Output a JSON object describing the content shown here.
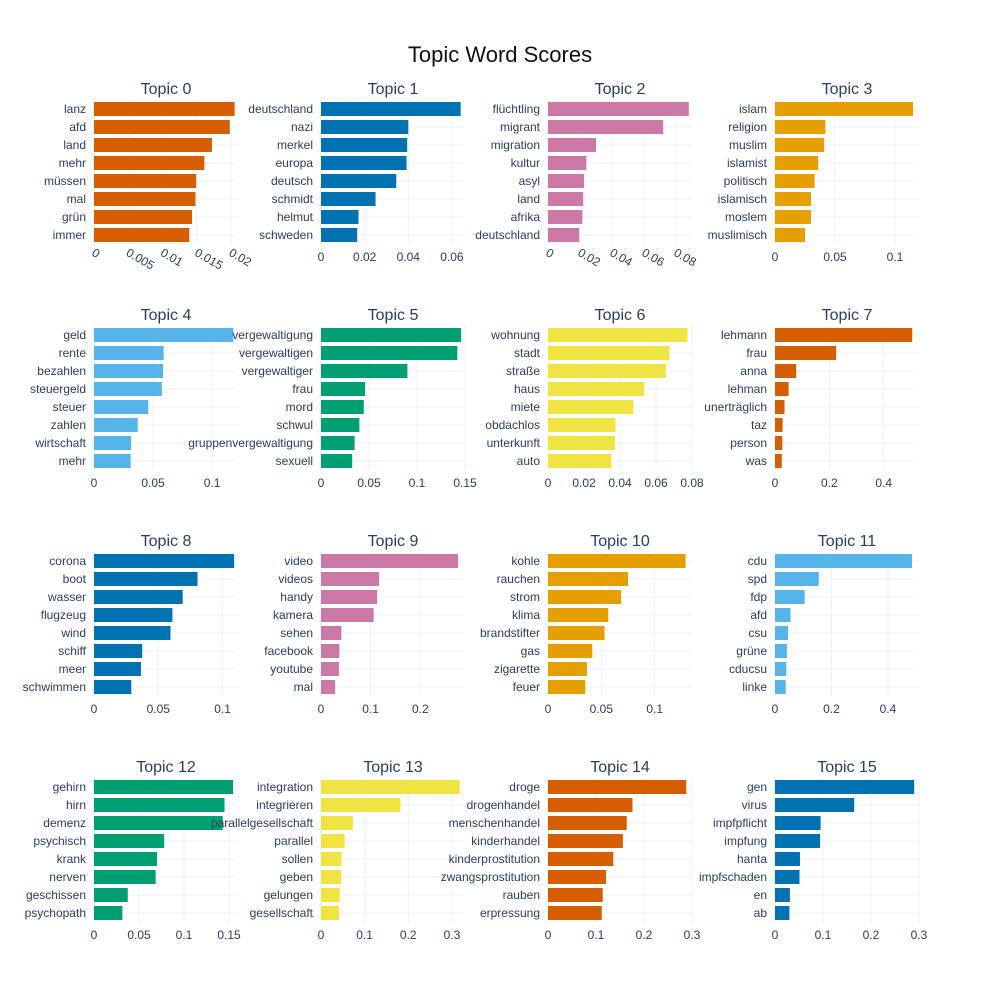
{
  "title": "Topic Word Scores",
  "colors": {
    "grid": "#ebf0f8",
    "axis_text": "#2a3f5f",
    "label_text": "#2a3f5f",
    "subplot_title": "#2a3f5f",
    "palette": [
      "#D55E00",
      "#0072B2",
      "#CC79A7",
      "#E69F00",
      "#56B4E9",
      "#009E73",
      "#F0E442"
    ]
  },
  "chart_data": [
    {
      "type": "bar",
      "orientation": "horizontal",
      "title": "Topic 0",
      "color": "#D55E00",
      "categories": [
        "lanz",
        "afd",
        "land",
        "mehr",
        "müssen",
        "mal",
        "grün",
        "immer"
      ],
      "values": [
        0.0205,
        0.0198,
        0.0172,
        0.0161,
        0.0149,
        0.0148,
        0.0143,
        0.0139
      ],
      "xlim": [
        0,
        0.021
      ],
      "ticks": [
        0,
        0.005,
        0.01,
        0.015,
        0.02
      ],
      "tick_labels": [
        "0",
        "0.005",
        "0.01",
        "0.015",
        "0.02"
      ],
      "tick_rotation": 30
    },
    {
      "type": "bar",
      "orientation": "horizontal",
      "title": "Topic 1",
      "color": "#0072B2",
      "categories": [
        "deutschland",
        "nazi",
        "merkel",
        "europa",
        "deutsch",
        "schmidt",
        "helmut",
        "schweden"
      ],
      "values": [
        0.064,
        0.04,
        0.0395,
        0.0392,
        0.0345,
        0.025,
        0.0172,
        0.0166
      ],
      "xlim": [
        0,
        0.066
      ],
      "ticks": [
        0,
        0.02,
        0.04,
        0.06
      ],
      "tick_labels": [
        "0",
        "0.02",
        "0.04",
        "0.06"
      ],
      "tick_rotation": 0
    },
    {
      "type": "bar",
      "orientation": "horizontal",
      "title": "Topic 2",
      "color": "#CC79A7",
      "categories": [
        "flüchtling",
        "migrant",
        "migration",
        "kultur",
        "asyl",
        "land",
        "afrika",
        "deutschland"
      ],
      "values": [
        0.088,
        0.072,
        0.03,
        0.024,
        0.0225,
        0.022,
        0.0215,
        0.0195
      ],
      "xlim": [
        0,
        0.09
      ],
      "ticks": [
        0,
        0.02,
        0.04,
        0.06,
        0.08
      ],
      "tick_labels": [
        "0",
        "0.02",
        "0.04",
        "0.06",
        "0.08"
      ],
      "tick_rotation": 30
    },
    {
      "type": "bar",
      "orientation": "horizontal",
      "title": "Topic 3",
      "color": "#E69F00",
      "categories": [
        "islam",
        "religion",
        "muslim",
        "islamist",
        "politisch",
        "islamisch",
        "moslem",
        "muslimisch"
      ],
      "values": [
        0.115,
        0.042,
        0.041,
        0.036,
        0.033,
        0.03,
        0.03,
        0.025
      ],
      "xlim": [
        0,
        0.12
      ],
      "ticks": [
        0,
        0.05,
        0.1
      ],
      "tick_labels": [
        "0",
        "0.05",
        "0.1"
      ],
      "tick_rotation": 0
    },
    {
      "type": "bar",
      "orientation": "horizontal",
      "title": "Topic 4",
      "color": "#56B4E9",
      "categories": [
        "geld",
        "rente",
        "bezahlen",
        "steuergeld",
        "steuer",
        "zahlen",
        "wirtschaft",
        "mehr"
      ],
      "values": [
        0.118,
        0.059,
        0.0585,
        0.0575,
        0.046,
        0.037,
        0.0315,
        0.031
      ],
      "xlim": [
        0,
        0.122
      ],
      "ticks": [
        0,
        0.05,
        0.1
      ],
      "tick_labels": [
        "0",
        "0.05",
        "0.1"
      ],
      "tick_rotation": 0
    },
    {
      "type": "bar",
      "orientation": "horizontal",
      "title": "Topic 5",
      "color": "#009E73",
      "categories": [
        "vergewaltigung",
        "vergewaltigen",
        "vergewaltiger",
        "frau",
        "mord",
        "schwul",
        "gruppenvergewaltigung",
        "sexuell"
      ],
      "values": [
        0.146,
        0.142,
        0.09,
        0.046,
        0.0445,
        0.04,
        0.035,
        0.0325
      ],
      "xlim": [
        0,
        0.15
      ],
      "ticks": [
        0,
        0.05,
        0.1,
        0.15
      ],
      "tick_labels": [
        "0",
        "0.05",
        "0.1",
        "0.15"
      ],
      "tick_rotation": 0
    },
    {
      "type": "bar",
      "orientation": "horizontal",
      "title": "Topic 6",
      "color": "#F0E442",
      "categories": [
        "wohnung",
        "stadt",
        "straße",
        "haus",
        "miete",
        "obdachlos",
        "unterkunft",
        "auto"
      ],
      "values": [
        0.0775,
        0.0675,
        0.0655,
        0.0535,
        0.0475,
        0.0375,
        0.0372,
        0.0352
      ],
      "xlim": [
        0,
        0.08
      ],
      "ticks": [
        0,
        0.02,
        0.04,
        0.06,
        0.08
      ],
      "tick_labels": [
        "0",
        "0.02",
        "0.04",
        "0.06",
        "0.08"
      ],
      "tick_rotation": 0
    },
    {
      "type": "bar",
      "orientation": "horizontal",
      "title": "Topic 7",
      "color": "#D55E00",
      "categories": [
        "lehmann",
        "frau",
        "anna",
        "lehman",
        "unerträglich",
        "taz",
        "person",
        "was"
      ],
      "values": [
        0.505,
        0.225,
        0.078,
        0.05,
        0.035,
        0.028,
        0.027,
        0.025
      ],
      "xlim": [
        0,
        0.53
      ],
      "ticks": [
        0,
        0.2,
        0.4
      ],
      "tick_labels": [
        "0",
        "0.2",
        "0.4"
      ],
      "tick_rotation": 0
    },
    {
      "type": "bar",
      "orientation": "horizontal",
      "title": "Topic 8",
      "color": "#0072B2",
      "categories": [
        "corona",
        "boot",
        "wasser",
        "flugzeug",
        "wind",
        "schiff",
        "meer",
        "schwimmen"
      ],
      "values": [
        0.109,
        0.0805,
        0.069,
        0.061,
        0.0595,
        0.0375,
        0.0365,
        0.029
      ],
      "xlim": [
        0,
        0.112
      ],
      "ticks": [
        0,
        0.05,
        0.1
      ],
      "tick_labels": [
        "0",
        "0.05",
        "0.1"
      ],
      "tick_rotation": 0
    },
    {
      "type": "bar",
      "orientation": "horizontal",
      "title": "Topic 9",
      "color": "#CC79A7",
      "categories": [
        "video",
        "videos",
        "handy",
        "kamera",
        "sehen",
        "facebook",
        "youtube",
        "mal"
      ],
      "values": [
        0.276,
        0.117,
        0.113,
        0.106,
        0.041,
        0.037,
        0.036,
        0.0285
      ],
      "xlim": [
        0,
        0.29
      ],
      "ticks": [
        0,
        0.1,
        0.2
      ],
      "tick_labels": [
        "0",
        "0.1",
        "0.2"
      ],
      "tick_rotation": 0
    },
    {
      "type": "bar",
      "orientation": "horizontal",
      "title": "Topic 10",
      "color": "#E69F00",
      "categories": [
        "kohle",
        "rauchen",
        "strom",
        "klima",
        "brandstifter",
        "gas",
        "zigarette",
        "feuer"
      ],
      "values": [
        0.129,
        0.075,
        0.0685,
        0.0565,
        0.053,
        0.0415,
        0.0365,
        0.035
      ],
      "xlim": [
        0,
        0.135
      ],
      "ticks": [
        0,
        0.05,
        0.1
      ],
      "tick_labels": [
        "0",
        "0.05",
        "0.1"
      ],
      "tick_rotation": 0
    },
    {
      "type": "bar",
      "orientation": "horizontal",
      "title": "Topic 11",
      "color": "#56B4E9",
      "categories": [
        "cdu",
        "spd",
        "fdp",
        "afd",
        "csu",
        "grüne",
        "cducsu",
        "linke"
      ],
      "values": [
        0.485,
        0.155,
        0.105,
        0.055,
        0.046,
        0.042,
        0.04,
        0.038
      ],
      "xlim": [
        0,
        0.51
      ],
      "ticks": [
        0,
        0.2,
        0.4
      ],
      "tick_labels": [
        "0",
        "0.2",
        "0.4"
      ],
      "tick_rotation": 0
    },
    {
      "type": "bar",
      "orientation": "horizontal",
      "title": "Topic 12",
      "color": "#009E73",
      "categories": [
        "gehirn",
        "hirn",
        "demenz",
        "psychisch",
        "krank",
        "nerven",
        "geschissen",
        "psychopath"
      ],
      "values": [
        0.1545,
        0.145,
        0.143,
        0.078,
        0.07,
        0.0685,
        0.0375,
        0.0315
      ],
      "xlim": [
        0,
        0.16
      ],
      "ticks": [
        0,
        0.05,
        0.1,
        0.15
      ],
      "tick_labels": [
        "0",
        "0.05",
        "0.1",
        "0.15"
      ],
      "tick_rotation": 0
    },
    {
      "type": "bar",
      "orientation": "horizontal",
      "title": "Topic 13",
      "color": "#F0E442",
      "categories": [
        "integration",
        "integrieren",
        "parallelgesellschaft",
        "parallel",
        "sollen",
        "geben",
        "gelungen",
        "gesellschaft"
      ],
      "values": [
        0.318,
        0.182,
        0.073,
        0.054,
        0.047,
        0.046,
        0.043,
        0.041
      ],
      "xlim": [
        0,
        0.33
      ],
      "ticks": [
        0,
        0.1,
        0.2,
        0.3
      ],
      "tick_labels": [
        "0",
        "0.1",
        "0.2",
        "0.3"
      ],
      "tick_rotation": 0
    },
    {
      "type": "bar",
      "orientation": "horizontal",
      "title": "Topic 14",
      "color": "#D55E00",
      "categories": [
        "droge",
        "drogenhandel",
        "menschenhandel",
        "kinderhandel",
        "kinderprostitution",
        "zwangsprostitution",
        "rauben",
        "erpressung"
      ],
      "values": [
        0.288,
        0.176,
        0.164,
        0.156,
        0.136,
        0.121,
        0.114,
        0.112
      ],
      "xlim": [
        0,
        0.3
      ],
      "ticks": [
        0,
        0.1,
        0.2,
        0.3
      ],
      "tick_labels": [
        "0",
        "0.1",
        "0.2",
        "0.3"
      ],
      "tick_rotation": 0
    },
    {
      "type": "bar",
      "orientation": "horizontal",
      "title": "Topic 15",
      "color": "#0072B2",
      "categories": [
        "gen",
        "virus",
        "impfpflicht",
        "impfung",
        "hanta",
        "impfschaden",
        "en",
        "ab"
      ],
      "values": [
        0.29,
        0.165,
        0.095,
        0.094,
        0.052,
        0.051,
        0.031,
        0.03
      ],
      "xlim": [
        0,
        0.3
      ],
      "ticks": [
        0,
        0.1,
        0.2,
        0.3
      ],
      "tick_labels": [
        "0",
        "0.1",
        "0.2",
        "0.3"
      ],
      "tick_rotation": 0
    }
  ]
}
